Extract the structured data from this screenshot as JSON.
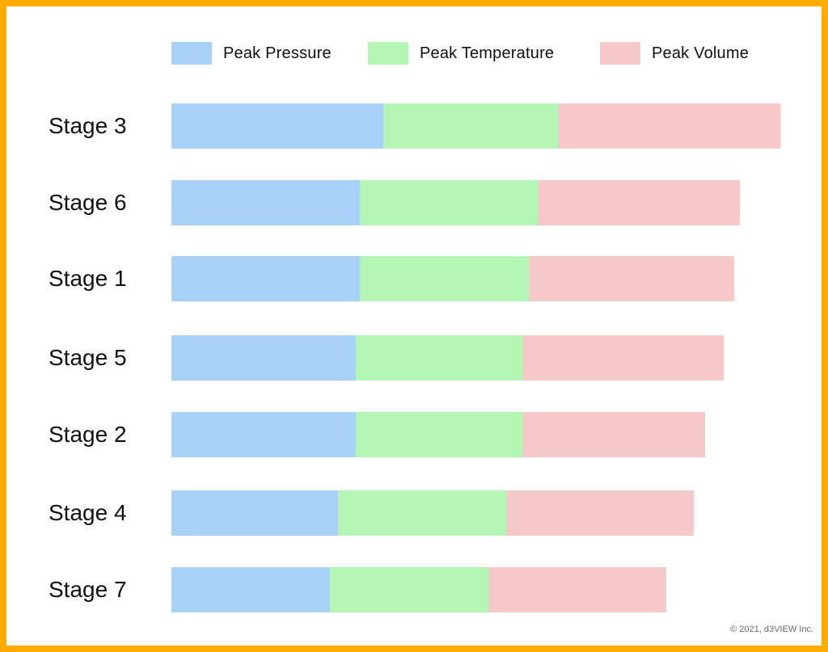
{
  "colors": {
    "border": "#FFAB00",
    "peak_pressure": "#A8D1F8",
    "peak_temperature": "#B3F5B3",
    "peak_volume": "#F6C8C8"
  },
  "legend": [
    {
      "label": "Peak Pressure",
      "color": "#A8D1F8"
    },
    {
      "label": "Peak Temperature",
      "color": "#B3F5B3"
    },
    {
      "label": "Peak Volume",
      "color": "#F6C8C8"
    }
  ],
  "copyright": "© 2021, d3VIEW Inc.",
  "chart_data": {
    "type": "bar",
    "orientation": "horizontal",
    "stacked": true,
    "title": "",
    "xlabel": "",
    "ylabel": "",
    "grid": false,
    "axes_visible": false,
    "legend_position": "top",
    "units": "pixel-length (no axis scale shown)",
    "categories": [
      "Stage 3",
      "Stage 6",
      "Stage 1",
      "Stage 5",
      "Stage 2",
      "Stage 4",
      "Stage 7"
    ],
    "series": [
      {
        "name": "Peak Pressure",
        "color": "#A8D1F8",
        "values": [
          262,
          233,
          233,
          228,
          228,
          206,
          196
        ]
      },
      {
        "name": "Peak Temperature",
        "color": "#B3F5B3",
        "values": [
          216,
          220,
          209,
          206,
          206,
          208,
          196
        ]
      },
      {
        "name": "Peak Volume",
        "color": "#F6C8C8",
        "values": [
          275,
          250,
          254,
          249,
          226,
          232,
          220
        ]
      }
    ],
    "totals": [
      753,
      703,
      696,
      683,
      660,
      646,
      612
    ]
  },
  "layout": {
    "row_tops": [
      128,
      223,
      317,
      415,
      510,
      607,
      702
    ]
  }
}
